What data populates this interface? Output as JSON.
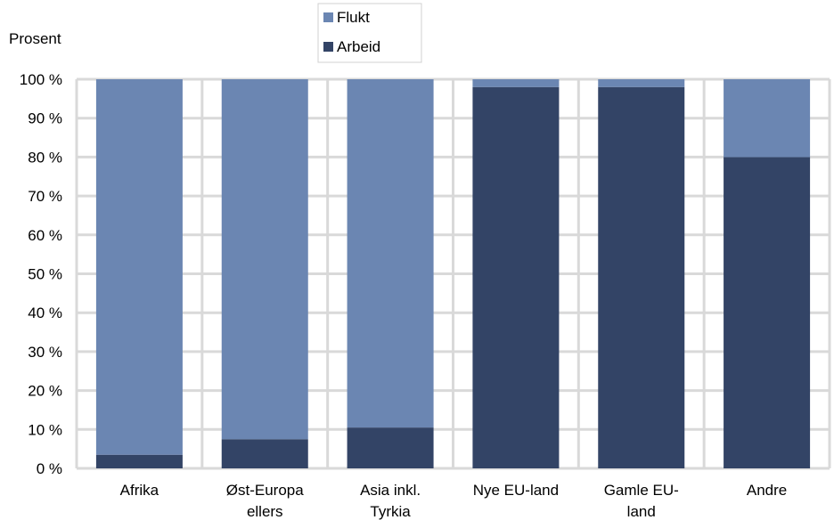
{
  "chart_data": {
    "type": "bar",
    "stacked": true,
    "ylabel": "Prosent",
    "ylim": [
      0,
      100
    ],
    "yticks": [
      "0 %",
      "10 %",
      "20 %",
      "30 %",
      "40 %",
      "50 %",
      "60 %",
      "70 %",
      "80 %",
      "90 %",
      "100 %"
    ],
    "categories": [
      [
        "Afrika"
      ],
      [
        "Øst-Europa",
        "ellers"
      ],
      [
        "Asia inkl.",
        "Tyrkia"
      ],
      [
        "Nye EU-land"
      ],
      [
        "Gamle EU-",
        "land"
      ],
      [
        "Andre"
      ]
    ],
    "series": [
      {
        "name": "Arbeid",
        "color": "#334466",
        "values": [
          3.5,
          7.5,
          10.5,
          98,
          98,
          80
        ]
      },
      {
        "name": "Flukt",
        "color": "#6b86b2",
        "values": [
          96.5,
          92.5,
          89.5,
          2,
          2,
          20
        ]
      }
    ],
    "legend": {
      "position": "top-center",
      "entries": [
        "Flukt",
        "Arbeid"
      ]
    },
    "grid": true
  }
}
